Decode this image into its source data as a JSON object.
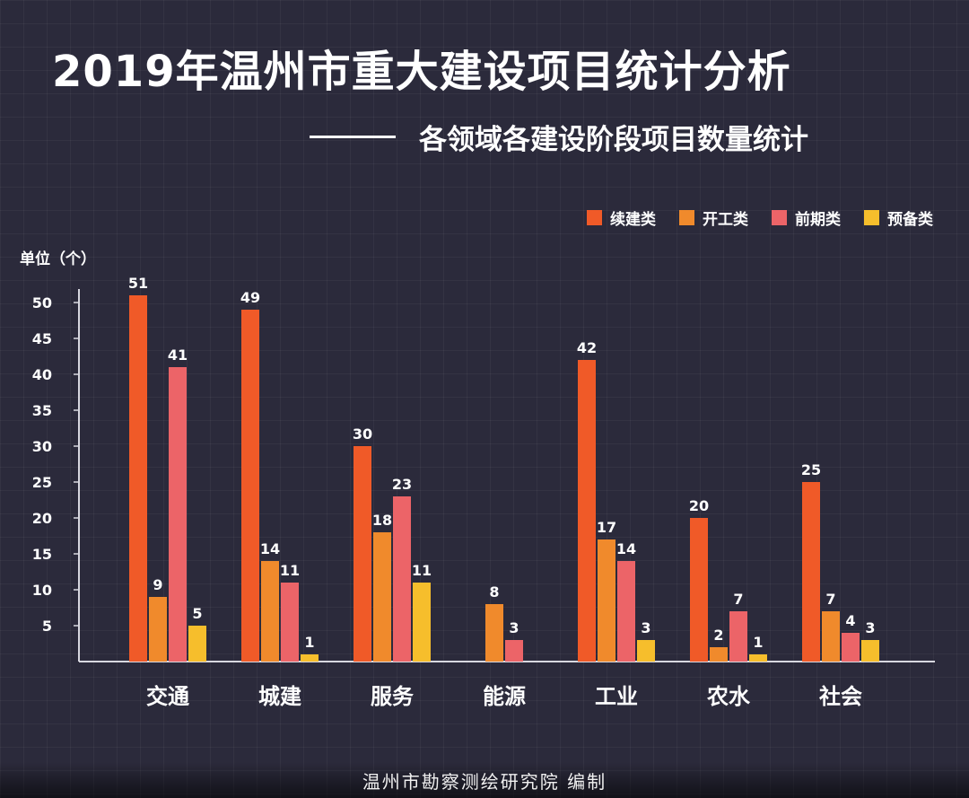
{
  "title": "2019年温州市重大建设项目统计分析",
  "subtitle": "各领域各建设阶段项目数量统计",
  "unit_label": "单位（个）",
  "footer": "温州市勘察测绘研究院   编制",
  "colors": {
    "background": "#2b2a3b",
    "continuing": "#f05a28",
    "started": "#f08a2c",
    "preliminary": "#ec6468",
    "reserve": "#f6be2c"
  },
  "chart_data": {
    "type": "bar",
    "title": "2019年温州市重大建设项目统计分析",
    "subtitle": "各领域各建设阶段项目数量统计",
    "ylabel": "单位（个）",
    "xlabel": "",
    "ylim": [
      0,
      51
    ],
    "yticks": [
      5,
      10,
      15,
      20,
      25,
      30,
      35,
      40,
      45,
      50
    ],
    "grid": false,
    "legend_position": "top-right",
    "categories": [
      "交通",
      "城建",
      "服务",
      "能源",
      "工业",
      "农水",
      "社会"
    ],
    "series": [
      {
        "name": "续建类",
        "color": "#f05a28",
        "values": [
          51,
          49,
          30,
          null,
          42,
          20,
          25
        ]
      },
      {
        "name": "开工类",
        "color": "#f08a2c",
        "values": [
          9,
          14,
          18,
          8,
          17,
          2,
          7
        ]
      },
      {
        "name": "前期类",
        "color": "#ec6468",
        "values": [
          41,
          11,
          23,
          3,
          14,
          7,
          4
        ]
      },
      {
        "name": "预备类",
        "color": "#f6be2c",
        "values": [
          5,
          1,
          11,
          null,
          3,
          1,
          3
        ]
      }
    ]
  }
}
